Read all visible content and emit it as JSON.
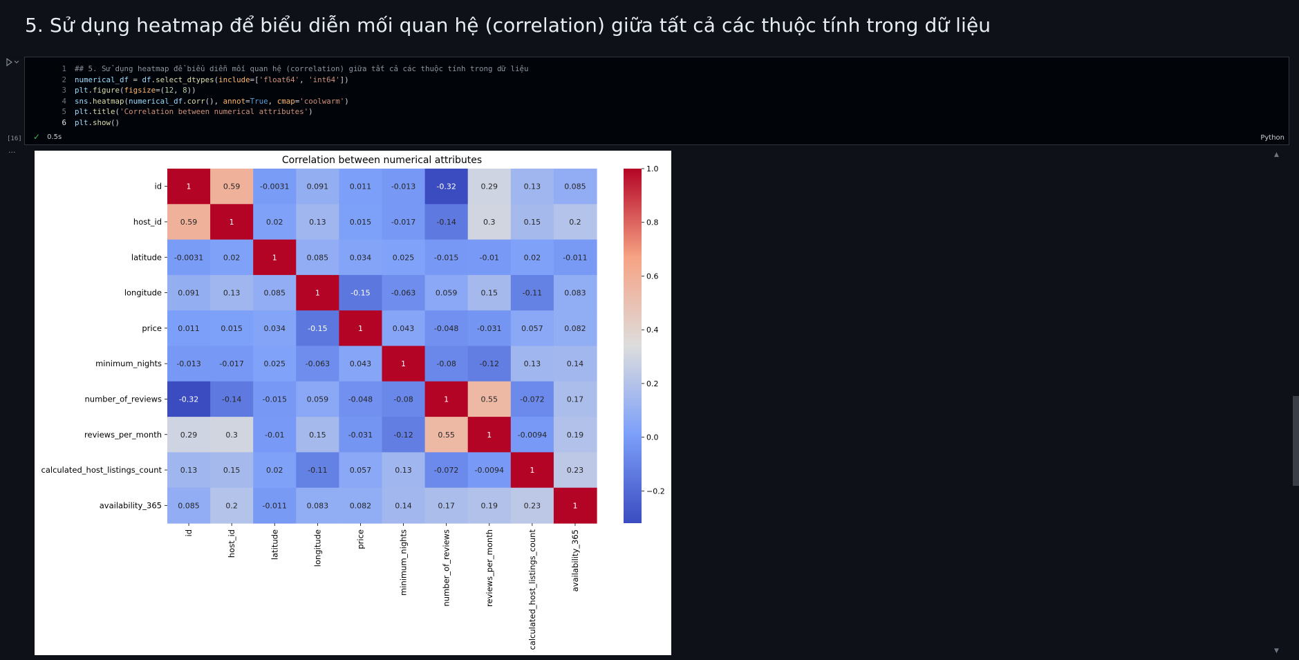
{
  "heading": "5. Sử dụng heatmap để biểu diễn mối quan hệ (correlation) giữa tất cả các thuộc tính trong dữ liệu",
  "cell": {
    "execution_count": "[16]",
    "status_time": "0.5s",
    "language": "Python",
    "run_icon": "run-triangle-icon",
    "check_icon": "check-icon",
    "line_numbers": [
      "1",
      "2",
      "3",
      "4",
      "5",
      "6"
    ],
    "code_lines": [
      [
        {
          "t": "## 5. Sử dụng heatmap để biểu diễn mối quan hệ (correlation) giữa tất cả các thuộc tính trong dữ liệu",
          "c": "com"
        }
      ],
      [
        {
          "t": "numerical_df",
          "c": "var"
        },
        {
          "t": " = ",
          "c": "p"
        },
        {
          "t": "df",
          "c": "var"
        },
        {
          "t": ".",
          "c": "p"
        },
        {
          "t": "select_dtypes",
          "c": "fn"
        },
        {
          "t": "(",
          "c": "p"
        },
        {
          "t": "include",
          "c": "kw"
        },
        {
          "t": "=[",
          "c": "p"
        },
        {
          "t": "'float64'",
          "c": "str"
        },
        {
          "t": ", ",
          "c": "p"
        },
        {
          "t": "'int64'",
          "c": "str"
        },
        {
          "t": "])",
          "c": "p"
        }
      ],
      [
        {
          "t": "plt",
          "c": "var"
        },
        {
          "t": ".",
          "c": "p"
        },
        {
          "t": "figure",
          "c": "fn"
        },
        {
          "t": "(",
          "c": "p"
        },
        {
          "t": "figsize",
          "c": "kw"
        },
        {
          "t": "=(",
          "c": "p"
        },
        {
          "t": "12",
          "c": "num"
        },
        {
          "t": ", ",
          "c": "p"
        },
        {
          "t": "8",
          "c": "num"
        },
        {
          "t": "))",
          "c": "p"
        }
      ],
      [
        {
          "t": "sns",
          "c": "var"
        },
        {
          "t": ".",
          "c": "p"
        },
        {
          "t": "heatmap",
          "c": "fn"
        },
        {
          "t": "(",
          "c": "p"
        },
        {
          "t": "numerical_df",
          "c": "var"
        },
        {
          "t": ".",
          "c": "p"
        },
        {
          "t": "corr",
          "c": "fn"
        },
        {
          "t": "(), ",
          "c": "p"
        },
        {
          "t": "annot",
          "c": "kw"
        },
        {
          "t": "=",
          "c": "p"
        },
        {
          "t": "True",
          "c": "const"
        },
        {
          "t": ", ",
          "c": "p"
        },
        {
          "t": "cmap",
          "c": "kw"
        },
        {
          "t": "=",
          "c": "p"
        },
        {
          "t": "'coolwarm'",
          "c": "str"
        },
        {
          "t": ")",
          "c": "p"
        }
      ],
      [
        {
          "t": "plt",
          "c": "var"
        },
        {
          "t": ".",
          "c": "p"
        },
        {
          "t": "title",
          "c": "fn"
        },
        {
          "t": "(",
          "c": "p"
        },
        {
          "t": "'Correlation between numerical attributes'",
          "c": "str"
        },
        {
          "t": ")",
          "c": "p"
        }
      ],
      [
        {
          "t": "plt",
          "c": "var"
        },
        {
          "t": ".",
          "c": "p"
        },
        {
          "t": "show",
          "c": "fn"
        },
        {
          "t": "()",
          "c": "p"
        }
      ]
    ]
  },
  "chart_data": {
    "type": "heatmap",
    "title": "Correlation between numerical attributes",
    "cmap": "coolwarm",
    "labels": [
      "id",
      "host_id",
      "latitude",
      "longitude",
      "price",
      "minimum_nights",
      "number_of_reviews",
      "reviews_per_month",
      "calculated_host_listings_count",
      "availability_365"
    ],
    "matrix": [
      [
        1,
        0.59,
        -0.0031,
        0.091,
        0.011,
        -0.013,
        -0.32,
        0.29,
        0.13,
        0.085
      ],
      [
        0.59,
        1,
        0.02,
        0.13,
        0.015,
        -0.017,
        -0.14,
        0.3,
        0.15,
        0.2
      ],
      [
        -0.0031,
        0.02,
        1,
        0.085,
        0.034,
        0.025,
        -0.015,
        -0.01,
        0.02,
        -0.011
      ],
      [
        0.091,
        0.13,
        0.085,
        1,
        -0.15,
        -0.063,
        0.059,
        0.15,
        -0.11,
        0.083
      ],
      [
        0.011,
        0.015,
        0.034,
        -0.15,
        1,
        0.043,
        -0.048,
        -0.031,
        0.057,
        0.082
      ],
      [
        -0.013,
        -0.017,
        0.025,
        -0.063,
        0.043,
        1,
        -0.08,
        -0.12,
        0.13,
        0.14
      ],
      [
        -0.32,
        -0.14,
        -0.015,
        0.059,
        -0.048,
        -0.08,
        1,
        0.55,
        -0.072,
        0.17
      ],
      [
        0.29,
        0.3,
        -0.01,
        0.15,
        -0.031,
        -0.12,
        0.55,
        1,
        -0.0094,
        0.19
      ],
      [
        0.13,
        0.15,
        0.02,
        -0.11,
        0.057,
        0.13,
        -0.072,
        -0.0094,
        1,
        0.23
      ],
      [
        0.085,
        0.2,
        -0.011,
        0.083,
        0.082,
        0.14,
        0.17,
        0.19,
        0.23,
        1
      ]
    ],
    "annotations": [
      [
        "1",
        "0.59",
        "-0.0031",
        "0.091",
        "0.011",
        "-0.013",
        "-0.32",
        "0.29",
        "0.13",
        "0.085"
      ],
      [
        "0.59",
        "1",
        "0.02",
        "0.13",
        "0.015",
        "-0.017",
        "-0.14",
        "0.3",
        "0.15",
        "0.2"
      ],
      [
        "-0.0031",
        "0.02",
        "1",
        "0.085",
        "0.034",
        "0.025",
        "-0.015",
        "-0.01",
        "0.02",
        "-0.011"
      ],
      [
        "0.091",
        "0.13",
        "0.085",
        "1",
        "-0.15",
        "-0.063",
        "0.059",
        "0.15",
        "-0.11",
        "0.083"
      ],
      [
        "0.011",
        "0.015",
        "0.034",
        "-0.15",
        "1",
        "0.043",
        "-0.048",
        "-0.031",
        "0.057",
        "0.082"
      ],
      [
        "-0.013",
        "-0.017",
        "0.025",
        "-0.063",
        "0.043",
        "1",
        "-0.08",
        "-0.12",
        "0.13",
        "0.14"
      ],
      [
        "-0.32",
        "-0.14",
        "-0.015",
        "0.059",
        "-0.048",
        "-0.08",
        "1",
        "0.55",
        "-0.072",
        "0.17"
      ],
      [
        "0.29",
        "0.3",
        "-0.01",
        "0.15",
        "-0.031",
        "-0.12",
        "0.55",
        "1",
        "-0.0094",
        "0.19"
      ],
      [
        "0.13",
        "0.15",
        "0.02",
        "-0.11",
        "0.057",
        "0.13",
        "-0.072",
        "-0.0094",
        "1",
        "0.23"
      ],
      [
        "0.085",
        "0.2",
        "-0.011",
        "0.083",
        "0.082",
        "0.14",
        "0.17",
        "0.19",
        "0.23",
        "1"
      ]
    ],
    "colorbar": {
      "range": [
        -0.32,
        1
      ],
      "ticks": [
        1.0,
        0.8,
        0.6,
        0.4,
        0.2,
        0.0,
        -0.2
      ],
      "tick_labels": [
        "1.0",
        "0.8",
        "0.6",
        "0.4",
        "0.2",
        "0.0",
        "−0.2"
      ]
    }
  }
}
